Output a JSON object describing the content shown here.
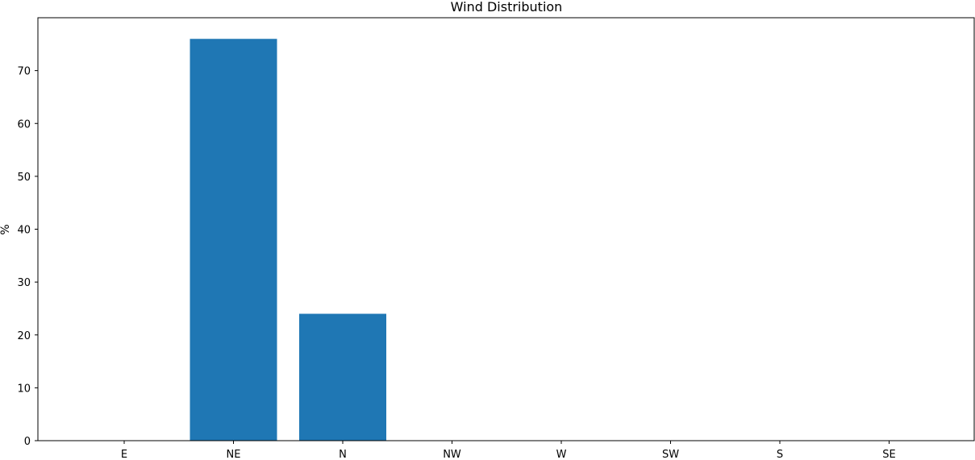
{
  "chart_data": {
    "type": "bar",
    "title": "Wind Distribution",
    "xlabel": "",
    "ylabel": "%",
    "categories": [
      "E",
      "NE",
      "N",
      "NW",
      "W",
      "SW",
      "S",
      "SE"
    ],
    "values": [
      0,
      76,
      24,
      0,
      0,
      0,
      0,
      0
    ],
    "ylim": [
      0,
      80
    ],
    "yticks": [
      0,
      10,
      20,
      30,
      40,
      50,
      60,
      70
    ],
    "grid": false,
    "bar_color": "#1f77b4"
  }
}
